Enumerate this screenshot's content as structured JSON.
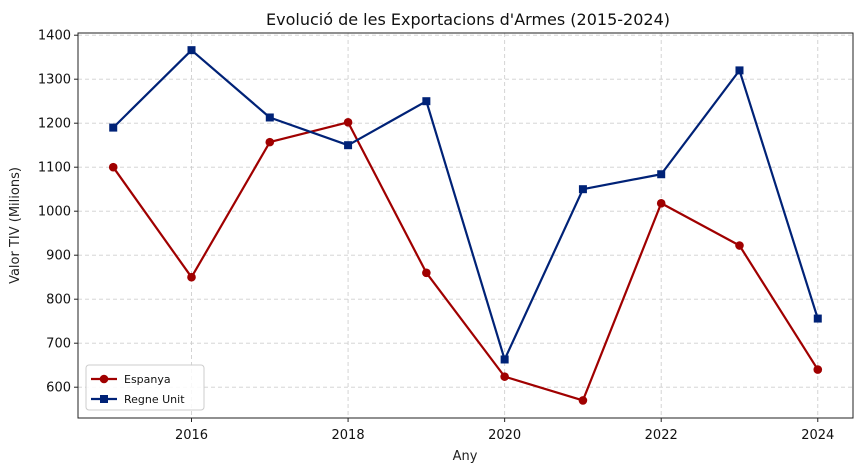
{
  "chart_data": {
    "type": "line",
    "title": "Evolució de les Exportacions d'Armes (2015-2024)",
    "xlabel": "Any",
    "ylabel": "Valor TIV (Milions)",
    "x": [
      2015,
      2016,
      2017,
      2018,
      2019,
      2020,
      2021,
      2022,
      2023,
      2024
    ],
    "xlim": [
      2014.55,
      2024.45
    ],
    "ylim": [
      530,
      1405
    ],
    "xticks": [
      2016,
      2018,
      2020,
      2022,
      2024
    ],
    "yticks": [
      600,
      700,
      800,
      900,
      1000,
      1100,
      1200,
      1300,
      1400
    ],
    "grid": true,
    "legend_position": "lower-left",
    "series": [
      {
        "name": "Espanya",
        "color": "#a00000",
        "marker": "circle",
        "values": [
          1100,
          850,
          1157,
          1202,
          860,
          624,
          570,
          1018,
          922,
          640
        ]
      },
      {
        "name": "Regne Unit",
        "color": "#002277",
        "marker": "square",
        "values": [
          1190,
          1366,
          1213,
          1150,
          1250,
          663,
          1050,
          1084,
          1320,
          756
        ]
      }
    ]
  }
}
